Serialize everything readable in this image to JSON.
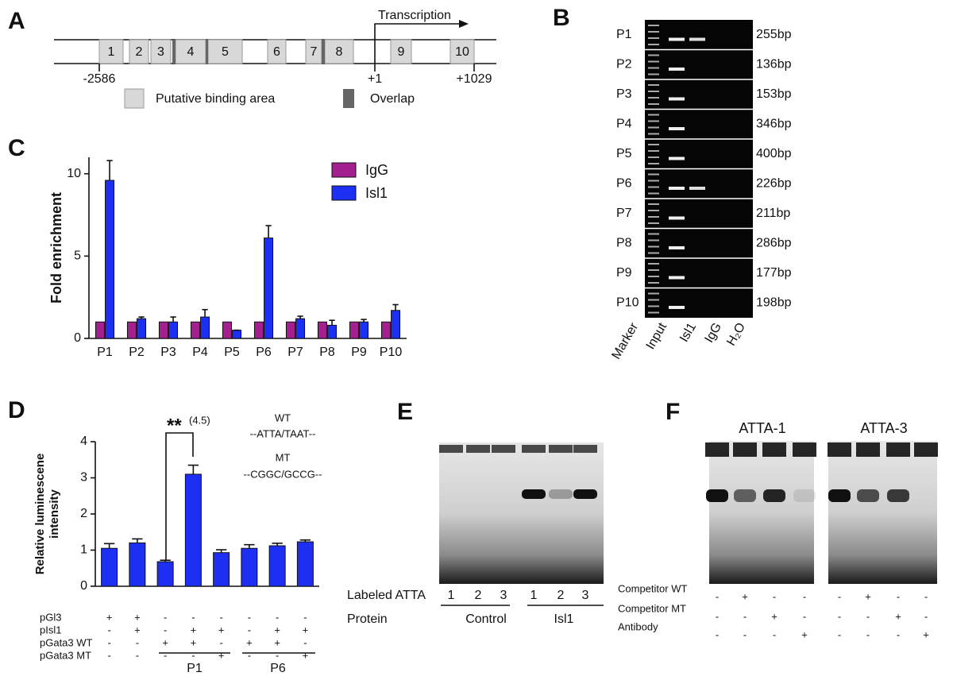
{
  "panel_a": {
    "label": "A",
    "boxes": [
      "1",
      "2",
      "3",
      "4",
      "5",
      "6",
      "7",
      "8",
      "9",
      "10"
    ],
    "transcription": "Transcription",
    "positions": [
      "-2586",
      "+1",
      "+1029"
    ],
    "legend": [
      "Putative binding area",
      "Overlap"
    ]
  },
  "panel_b": {
    "label": "B",
    "rows": [
      {
        "primer": "P1",
        "size": "255bp"
      },
      {
        "primer": "P2",
        "size": "136bp"
      },
      {
        "primer": "P3",
        "size": "153bp"
      },
      {
        "primer": "P4",
        "size": "346bp"
      },
      {
        "primer": "P5",
        "size": "400bp"
      },
      {
        "primer": "P6",
        "size": "226bp"
      },
      {
        "primer": "P7",
        "size": "211bp"
      },
      {
        "primer": "P8",
        "size": "286bp"
      },
      {
        "primer": "P9",
        "size": "177bp"
      },
      {
        "primer": "P10",
        "size": "198bp"
      }
    ],
    "lanes": [
      "Marker",
      "Input",
      "Isl1",
      "IgG",
      "H₂O"
    ]
  },
  "chart_data": [
    {
      "type": "bar",
      "panel_label": "C",
      "ylabel": "Fold enrichment",
      "categories": [
        "P1",
        "P2",
        "P3",
        "P4",
        "P5",
        "P6",
        "P7",
        "P8",
        "P9",
        "P10"
      ],
      "series": [
        {
          "name": "IgG",
          "color": "#a3208f",
          "values": [
            1,
            1,
            1,
            1,
            1,
            1,
            1,
            1,
            1,
            1
          ]
        },
        {
          "name": "Isl1",
          "color": "#1c2ff2",
          "values": [
            9.6,
            1.2,
            1.0,
            1.3,
            0.5,
            6.1,
            1.2,
            0.8,
            1.0,
            1.7
          ],
          "errors": [
            1.2,
            0.1,
            0.3,
            0.45,
            0,
            0.75,
            0.15,
            0.3,
            0.15,
            0.35
          ]
        }
      ],
      "ylim": [
        0,
        11
      ],
      "yticks": [
        0,
        5,
        10
      ]
    },
    {
      "type": "bar",
      "panel_label": "D",
      "ylabel": [
        "Relative luminescene",
        "intensity"
      ],
      "categories": [
        null,
        null,
        null,
        null,
        null,
        null,
        null,
        null
      ],
      "series": [
        {
          "name": null,
          "color": "#1c2ff2",
          "values": [
            1.05,
            1.2,
            0.68,
            3.1,
            0.93,
            1.05,
            1.12,
            1.23
          ],
          "errors": [
            0.13,
            0.11,
            0.04,
            0.25,
            0.08,
            0.1,
            0.07,
            0.05
          ]
        }
      ],
      "ylim": [
        0,
        4
      ],
      "yticks": [
        0,
        1,
        2,
        3,
        4
      ],
      "significance": {
        "stars": "**",
        "fold": "(4.5)"
      },
      "notes": [
        "WT",
        "--ATTA/TAAT--",
        "MT",
        "--CGGC/GCCG--"
      ],
      "conditions": [
        {
          "name": "pGl3",
          "signs": [
            "+",
            "+",
            "-",
            "-",
            "-",
            "-",
            "-",
            "-"
          ]
        },
        {
          "name": "pIsl1",
          "signs": [
            "-",
            "+",
            "-",
            "+",
            "+",
            "-",
            "+",
            "+"
          ]
        },
        {
          "name": "pGata3 WT",
          "signs": [
            "-",
            "-",
            "+",
            "+",
            "-",
            "+",
            "+",
            "-"
          ]
        },
        {
          "name": "pGata3 MT",
          "signs": [
            "-",
            "-",
            "-",
            "-",
            "+",
            "-",
            "-",
            "+"
          ]
        }
      ],
      "groups": [
        "P1",
        "P6"
      ]
    }
  ],
  "panel_e": {
    "label": "E",
    "row_labels": [
      "Labeled ATTA",
      "Protein"
    ],
    "lanes": [
      "1",
      "2",
      "3",
      "1",
      "2",
      "3"
    ],
    "groups": [
      "Control",
      "Isl1"
    ]
  },
  "panel_f": {
    "label": "F",
    "titles": [
      "ATTA-1",
      "ATTA-3"
    ],
    "rows": [
      {
        "name": "Competitor WT",
        "signs": [
          "-",
          "+",
          "-",
          "-",
          "-",
          "+",
          "-",
          "-"
        ]
      },
      {
        "name": "Competitor MT",
        "signs": [
          "-",
          "-",
          "+",
          "-",
          "-",
          "-",
          "+",
          "-"
        ]
      },
      {
        "name": "Antibody",
        "signs": [
          "-",
          "-",
          "-",
          "+",
          "-",
          "-",
          "-",
          "+"
        ]
      }
    ]
  }
}
